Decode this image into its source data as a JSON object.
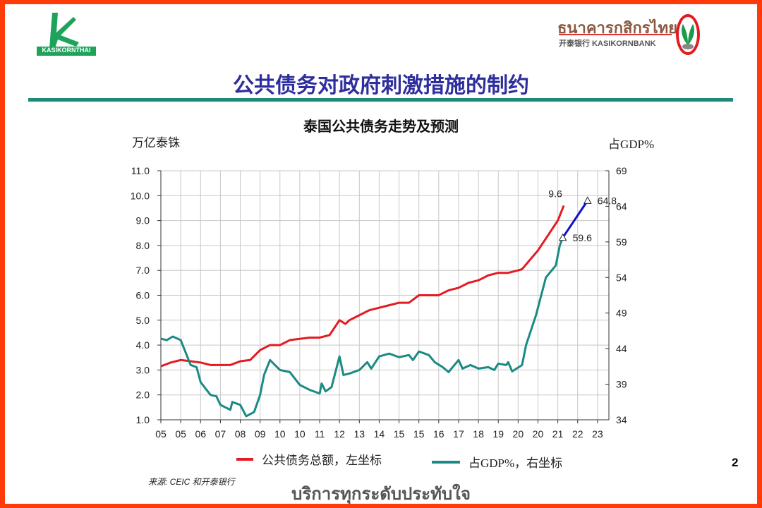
{
  "header": {
    "left_logo_text": "KASIKORNTHAI",
    "right_logo_thai": "ธนาคารกสิกรไทย",
    "right_logo_sub": "开泰银行 KASIKORNBANK",
    "title": "公共债务对政府刺激措施的制约"
  },
  "chart_data": {
    "type": "line",
    "title": "泰国公共债务走势及预测",
    "ylabel_left": "万亿泰铢",
    "ylabel_right": "占GDP%",
    "x_tick_labels": [
      "05",
      "05",
      "06",
      "07",
      "08",
      "09",
      "10",
      "10",
      "11",
      "12",
      "13",
      "14",
      "15",
      "15",
      "16",
      "17",
      "18",
      "19",
      "20",
      "20",
      "21",
      "22",
      "23"
    ],
    "ylim_left": [
      1.0,
      11.0
    ],
    "yticks_left": [
      "1.0",
      "2.0",
      "3.0",
      "4.0",
      "5.0",
      "6.0",
      "7.0",
      "8.0",
      "9.0",
      "10.0",
      "11.0"
    ],
    "ylim_right": [
      34,
      69
    ],
    "yticks_right": [
      "34",
      "39",
      "44",
      "49",
      "54",
      "59",
      "64",
      "69"
    ],
    "grid": true,
    "legend_placement": "bottom",
    "series": [
      {
        "name": "公共债务总额，左坐标",
        "axis": "left",
        "color": "#e31b23",
        "points": [
          [
            0,
            3.15
          ],
          [
            0.5,
            3.3
          ],
          [
            1,
            3.4
          ],
          [
            1.5,
            3.35
          ],
          [
            2,
            3.3
          ],
          [
            2.5,
            3.2
          ],
          [
            3,
            3.2
          ],
          [
            3.5,
            3.2
          ],
          [
            4,
            3.35
          ],
          [
            4.5,
            3.4
          ],
          [
            5,
            3.8
          ],
          [
            5.5,
            4.0
          ],
          [
            6,
            4.0
          ],
          [
            6.5,
            4.2
          ],
          [
            7,
            4.25
          ],
          [
            7.5,
            4.3
          ],
          [
            8,
            4.3
          ],
          [
            8.5,
            4.4
          ],
          [
            9,
            5.0
          ],
          [
            9.3,
            4.85
          ],
          [
            9.5,
            5.0
          ],
          [
            10,
            5.2
          ],
          [
            10.5,
            5.4
          ],
          [
            11,
            5.5
          ],
          [
            11.5,
            5.6
          ],
          [
            12,
            5.7
          ],
          [
            12.5,
            5.7
          ],
          [
            13,
            6.0
          ],
          [
            13.5,
            6.0
          ],
          [
            14,
            6.0
          ],
          [
            14.5,
            6.2
          ],
          [
            15,
            6.3
          ],
          [
            15.5,
            6.5
          ],
          [
            16,
            6.6
          ],
          [
            16.5,
            6.8
          ],
          [
            17,
            6.9
          ],
          [
            17.5,
            6.9
          ],
          [
            18,
            7.0
          ],
          [
            18.2,
            7.05
          ],
          [
            19,
            7.8
          ],
          [
            19.5,
            8.4
          ],
          [
            20,
            9.0
          ],
          [
            20.3,
            9.6
          ]
        ]
      },
      {
        "name": "占GDP%，右坐标",
        "axis": "right",
        "color": "#1a8a82",
        "points": [
          [
            0,
            45.4
          ],
          [
            0.3,
            45.2
          ],
          [
            0.6,
            45.7
          ],
          [
            1,
            45.2
          ],
          [
            1.5,
            41.7
          ],
          [
            1.8,
            41.4
          ],
          [
            2,
            39.3
          ],
          [
            2.5,
            37.5
          ],
          [
            2.8,
            37.3
          ],
          [
            3,
            36.1
          ],
          [
            3.5,
            35.4
          ],
          [
            3.6,
            36.5
          ],
          [
            4,
            36.1
          ],
          [
            4.3,
            34.5
          ],
          [
            4.7,
            35.1
          ],
          [
            5,
            37.5
          ],
          [
            5.2,
            40.3
          ],
          [
            5.5,
            42.4
          ],
          [
            6,
            41.0
          ],
          [
            6.5,
            40.7
          ],
          [
            7,
            38.9
          ],
          [
            7.5,
            38.2
          ],
          [
            8,
            37.7
          ],
          [
            8.1,
            39.1
          ],
          [
            8.3,
            38.0
          ],
          [
            8.6,
            38.6
          ],
          [
            9,
            42.9
          ],
          [
            9.2,
            40.3
          ],
          [
            9.5,
            40.5
          ],
          [
            10,
            41.0
          ],
          [
            10.4,
            42.1
          ],
          [
            10.6,
            41.2
          ],
          [
            11,
            42.9
          ],
          [
            11.5,
            43.3
          ],
          [
            12,
            42.8
          ],
          [
            12.5,
            43.1
          ],
          [
            12.7,
            42.4
          ],
          [
            13,
            43.6
          ],
          [
            13.5,
            43.1
          ],
          [
            13.8,
            42.1
          ],
          [
            14.2,
            41.4
          ],
          [
            14.5,
            40.7
          ],
          [
            14.7,
            41.4
          ],
          [
            15,
            42.4
          ],
          [
            15.2,
            41.2
          ],
          [
            15.6,
            41.7
          ],
          [
            16,
            41.2
          ],
          [
            16.5,
            41.4
          ],
          [
            16.8,
            41.0
          ],
          [
            17,
            41.9
          ],
          [
            17.4,
            41.7
          ],
          [
            17.5,
            42.1
          ],
          [
            17.7,
            40.8
          ],
          [
            18.2,
            41.7
          ],
          [
            18.4,
            44.5
          ],
          [
            18.9,
            48.7
          ],
          [
            19.4,
            54.0
          ],
          [
            19.9,
            55.7
          ],
          [
            20.1,
            58.5
          ],
          [
            20.25,
            59.6
          ]
        ]
      },
      {
        "axis": "right",
        "color": "#1010cc",
        "forecast": true,
        "points": [
          [
            20.25,
            59.6
          ],
          [
            21.5,
            64.8
          ]
        ]
      }
    ],
    "annotations": [
      {
        "text": "9.6",
        "axis": "left",
        "x": 20.3,
        "y": 9.6
      },
      {
        "text": "59.6",
        "axis": "right",
        "x": 20.25,
        "y": 59.6,
        "marker": "triangle"
      },
      {
        "text": "64.8",
        "axis": "right",
        "x": 21.5,
        "y": 64.8,
        "marker": "triangle"
      }
    ]
  },
  "footer": {
    "source": "来源:  CEIC 和开泰银行",
    "tagline": "บริการทุกระดับประทับใจ",
    "page_number": "2"
  }
}
